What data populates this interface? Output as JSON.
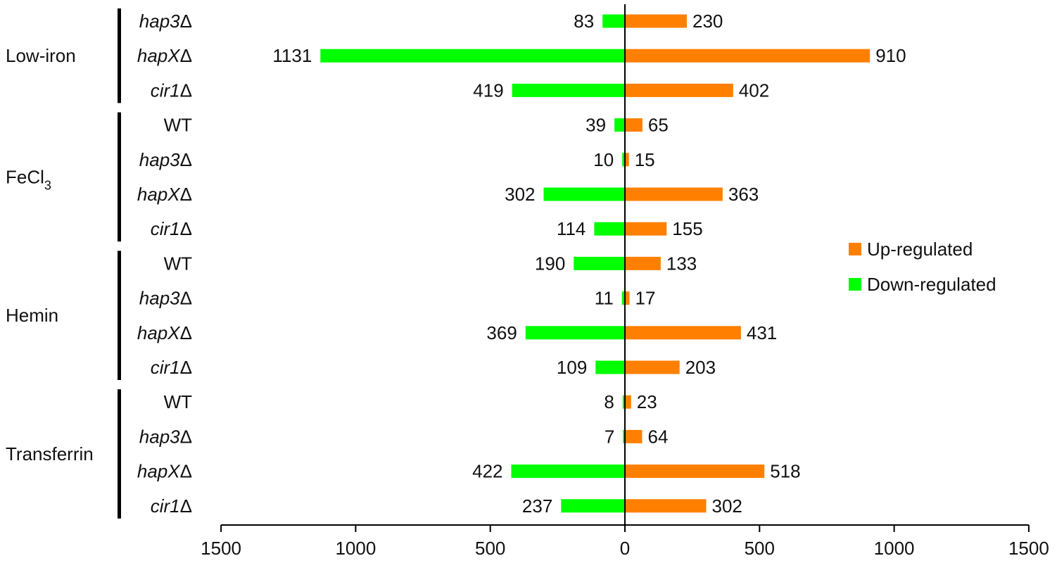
{
  "chart_data": {
    "type": "bar",
    "orientation": "horizontal-diverging",
    "title": "",
    "xlabel": "",
    "ylabel": "",
    "xlim": [
      -1500,
      1500
    ],
    "x_ticks": [
      -1500,
      -1000,
      -500,
      0,
      500,
      1000,
      1500
    ],
    "x_tick_labels": [
      "1500",
      "1000",
      "500",
      "0",
      "500",
      "1000",
      "1500"
    ],
    "grid": false,
    "legend_position": "right",
    "groups": [
      {
        "label": "Low-iron",
        "label_sub": "",
        "categories": [
          {
            "prefix": "hap3",
            "suffix": "Δ",
            "italic": true,
            "down": 83,
            "up": 230
          },
          {
            "prefix": "hapX",
            "suffix": "Δ",
            "italic": true,
            "down": 1131,
            "up": 910
          },
          {
            "prefix": "cir1",
            "suffix": "Δ",
            "italic": true,
            "down": 419,
            "up": 402
          }
        ]
      },
      {
        "label": "FeCl",
        "label_sub": "3",
        "categories": [
          {
            "prefix": "WT",
            "suffix": "",
            "italic": false,
            "down": 39,
            "up": 65
          },
          {
            "prefix": "hap3",
            "suffix": "Δ",
            "italic": true,
            "down": 10,
            "up": 15
          },
          {
            "prefix": "hapX",
            "suffix": "Δ",
            "italic": true,
            "down": 302,
            "up": 363
          },
          {
            "prefix": "cir1",
            "suffix": "Δ",
            "italic": true,
            "down": 114,
            "up": 155
          }
        ]
      },
      {
        "label": "Hemin",
        "label_sub": "",
        "categories": [
          {
            "prefix": "WT",
            "suffix": "",
            "italic": false,
            "down": 190,
            "up": 133
          },
          {
            "prefix": "hap3",
            "suffix": "Δ",
            "italic": true,
            "down": 11,
            "up": 17
          },
          {
            "prefix": "hapX",
            "suffix": "Δ",
            "italic": true,
            "down": 369,
            "up": 431
          },
          {
            "prefix": "cir1",
            "suffix": "Δ",
            "italic": true,
            "down": 109,
            "up": 203
          }
        ]
      },
      {
        "label": "Transferrin",
        "label_sub": "",
        "categories": [
          {
            "prefix": "WT",
            "suffix": "",
            "italic": false,
            "down": 8,
            "up": 23
          },
          {
            "prefix": "hap3",
            "suffix": "Δ",
            "italic": true,
            "down": 7,
            "up": 64
          },
          {
            "prefix": "hapX",
            "suffix": "Δ",
            "italic": true,
            "down": 422,
            "up": 518
          },
          {
            "prefix": "cir1",
            "suffix": "Δ",
            "italic": true,
            "down": 237,
            "up": 302
          }
        ]
      }
    ],
    "series": [
      {
        "name": "Up-regulated",
        "key": "up",
        "color": "#ff8000"
      },
      {
        "name": "Down-regulated",
        "key": "down",
        "color": "#00ff00"
      }
    ]
  }
}
